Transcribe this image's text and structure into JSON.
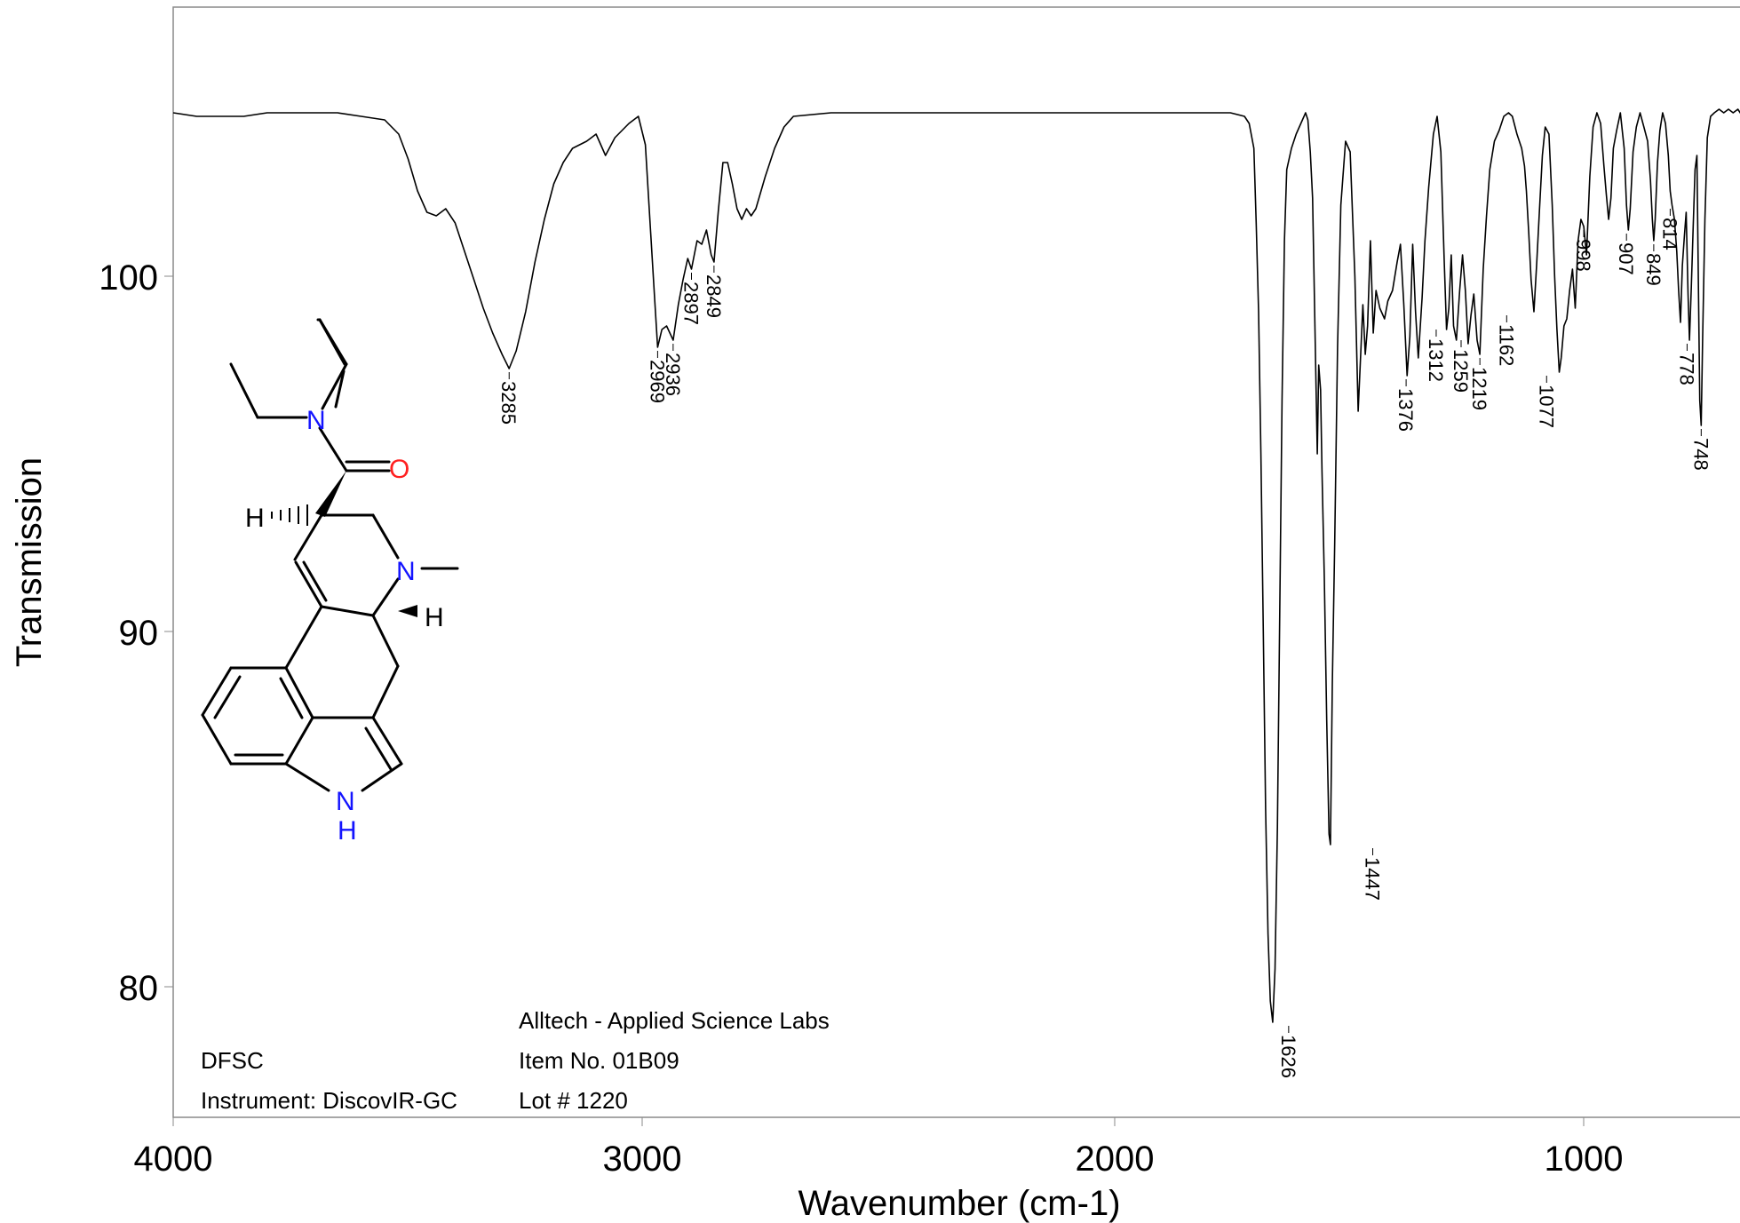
{
  "chart_data": {
    "type": "line",
    "xlabel": "Wavenumber (cm-1)",
    "ylabel": "Transmission",
    "x_ticks": [
      "4000",
      "3000",
      "2000",
      "1000"
    ],
    "y_ticks": [
      "100",
      "90",
      "80"
    ],
    "xlim": [
      4000,
      550
    ],
    "ylim": [
      76.5,
      107.7
    ],
    "x_reversed": true,
    "grid": false,
    "series": [
      {
        "points": [
          [
            4000,
            104.6
          ],
          [
            3950,
            104.5
          ],
          [
            3900,
            104.5
          ],
          [
            3850,
            104.5
          ],
          [
            3800,
            104.6
          ],
          [
            3750,
            104.6
          ],
          [
            3700,
            104.6
          ],
          [
            3650,
            104.6
          ],
          [
            3600,
            104.5
          ],
          [
            3550,
            104.4
          ],
          [
            3520,
            104.0
          ],
          [
            3500,
            103.3
          ],
          [
            3480,
            102.4
          ],
          [
            3460,
            101.8
          ],
          [
            3440,
            101.7
          ],
          [
            3420,
            101.9
          ],
          [
            3400,
            101.5
          ],
          [
            3380,
            100.7
          ],
          [
            3360,
            99.9
          ],
          [
            3340,
            99.1
          ],
          [
            3320,
            98.4
          ],
          [
            3300,
            97.8
          ],
          [
            3285,
            97.4
          ],
          [
            3270,
            97.9
          ],
          [
            3250,
            99.0
          ],
          [
            3230,
            100.4
          ],
          [
            3210,
            101.6
          ],
          [
            3190,
            102.6
          ],
          [
            3170,
            103.2
          ],
          [
            3150,
            103.6
          ],
          [
            3120,
            103.8
          ],
          [
            3100,
            104.0
          ],
          [
            3080,
            103.4
          ],
          [
            3060,
            103.9
          ],
          [
            3030,
            104.3
          ],
          [
            3010,
            104.5
          ],
          [
            2995,
            103.7
          ],
          [
            2985,
            101.5
          ],
          [
            2975,
            99.3
          ],
          [
            2969,
            98.0
          ],
          [
            2960,
            98.5
          ],
          [
            2950,
            98.6
          ],
          [
            2936,
            98.2
          ],
          [
            2925,
            99.2
          ],
          [
            2915,
            99.9
          ],
          [
            2905,
            100.5
          ],
          [
            2897,
            100.2
          ],
          [
            2885,
            101.0
          ],
          [
            2875,
            100.9
          ],
          [
            2865,
            101.3
          ],
          [
            2855,
            100.6
          ],
          [
            2849,
            100.4
          ],
          [
            2840,
            101.8
          ],
          [
            2830,
            103.2
          ],
          [
            2820,
            103.2
          ],
          [
            2810,
            102.6
          ],
          [
            2800,
            101.9
          ],
          [
            2790,
            101.6
          ],
          [
            2780,
            101.9
          ],
          [
            2770,
            101.7
          ],
          [
            2760,
            101.9
          ],
          [
            2740,
            102.8
          ],
          [
            2720,
            103.6
          ],
          [
            2700,
            104.2
          ],
          [
            2680,
            104.5
          ],
          [
            2600,
            104.6
          ],
          [
            2500,
            104.6
          ],
          [
            2400,
            104.6
          ],
          [
            2300,
            104.6
          ],
          [
            2200,
            104.6
          ],
          [
            2100,
            104.6
          ],
          [
            2000,
            104.6
          ],
          [
            1900,
            104.6
          ],
          [
            1800,
            104.6
          ],
          [
            1750,
            104.6
          ],
          [
            1720,
            104.5
          ],
          [
            1710,
            104.3
          ],
          [
            1700,
            103.6
          ],
          [
            1695,
            101.5
          ],
          [
            1690,
            99.0
          ],
          [
            1685,
            95.0
          ],
          [
            1680,
            90.0
          ],
          [
            1675,
            85.0
          ],
          [
            1670,
            81.5
          ],
          [
            1665,
            79.6
          ],
          [
            1660,
            79.0
          ],
          [
            1655,
            80.5
          ],
          [
            1650,
            84.5
          ],
          [
            1645,
            90.5
          ],
          [
            1640,
            96.5
          ],
          [
            1635,
            101.0
          ],
          [
            1630,
            103.0
          ],
          [
            1620,
            103.6
          ],
          [
            1610,
            104.0
          ],
          [
            1600,
            104.3
          ],
          [
            1590,
            104.6
          ],
          [
            1585,
            104.4
          ],
          [
            1580,
            103.5
          ],
          [
            1575,
            102.2
          ],
          [
            1570,
            98.5
          ],
          [
            1565,
            95.0
          ],
          [
            1562,
            97.5
          ],
          [
            1558,
            96.8
          ],
          [
            1555,
            94.5
          ],
          [
            1550,
            91.5
          ],
          [
            1545,
            87.5
          ],
          [
            1540,
            84.3
          ],
          [
            1537,
            84.0
          ],
          [
            1533,
            88.5
          ],
          [
            1528,
            92.5
          ],
          [
            1522,
            98.0
          ],
          [
            1515,
            102.0
          ],
          [
            1505,
            103.8
          ],
          [
            1495,
            103.5
          ],
          [
            1485,
            100.0
          ],
          [
            1478,
            96.2
          ],
          [
            1472,
            98.0
          ],
          [
            1468,
            99.2
          ],
          [
            1463,
            97.8
          ],
          [
            1458,
            98.6
          ],
          [
            1452,
            101.0
          ],
          [
            1446,
            98.4
          ],
          [
            1440,
            99.6
          ],
          [
            1432,
            99.1
          ],
          [
            1422,
            98.8
          ],
          [
            1415,
            99.3
          ],
          [
            1405,
            99.6
          ],
          [
            1395,
            100.4
          ],
          [
            1388,
            100.9
          ],
          [
            1381,
            99.2
          ],
          [
            1374,
            97.2
          ],
          [
            1368,
            98.3
          ],
          [
            1362,
            100.9
          ],
          [
            1356,
            99.0
          ],
          [
            1350,
            97.7
          ],
          [
            1342,
            99.4
          ],
          [
            1336,
            101.0
          ],
          [
            1328,
            102.5
          ],
          [
            1318,
            104.0
          ],
          [
            1310,
            104.5
          ],
          [
            1302,
            103.5
          ],
          [
            1295,
            100.5
          ],
          [
            1290,
            98.5
          ],
          [
            1285,
            99.1
          ],
          [
            1280,
            100.6
          ],
          [
            1275,
            98.6
          ],
          [
            1269,
            98.2
          ],
          [
            1262,
            99.6
          ],
          [
            1256,
            100.6
          ],
          [
            1250,
            99.6
          ],
          [
            1244,
            98.1
          ],
          [
            1238,
            98.9
          ],
          [
            1232,
            99.5
          ],
          [
            1225,
            98.2
          ],
          [
            1219,
            97.8
          ],
          [
            1212,
            100.2
          ],
          [
            1205,
            101.7
          ],
          [
            1198,
            103.0
          ],
          [
            1188,
            103.8
          ],
          [
            1178,
            104.1
          ],
          [
            1168,
            104.5
          ],
          [
            1158,
            104.6
          ],
          [
            1150,
            104.5
          ],
          [
            1140,
            104.0
          ],
          [
            1130,
            103.6
          ],
          [
            1124,
            103.1
          ],
          [
            1120,
            102.4
          ],
          [
            1115,
            101.2
          ],
          [
            1110,
            99.9
          ],
          [
            1104,
            99.0
          ],
          [
            1098,
            100.4
          ],
          [
            1092,
            101.9
          ],
          [
            1086,
            103.4
          ],
          [
            1080,
            104.2
          ],
          [
            1072,
            104.0
          ],
          [
            1065,
            102.0
          ],
          [
            1060,
            100.0
          ],
          [
            1055,
            98.5
          ],
          [
            1050,
            97.3
          ],
          [
            1046,
            97.7
          ],
          [
            1040,
            98.6
          ],
          [
            1034,
            98.8
          ],
          [
            1028,
            99.6
          ],
          [
            1022,
            100.2
          ],
          [
            1016,
            99.1
          ],
          [
            1010,
            101.0
          ],
          [
            1004,
            101.6
          ],
          [
            998,
            101.4
          ],
          [
            992,
            100.6
          ],
          [
            985,
            102.8
          ],
          [
            978,
            104.2
          ],
          [
            970,
            104.6
          ],
          [
            962,
            104.3
          ],
          [
            955,
            103.1
          ],
          [
            950,
            102.3
          ],
          [
            945,
            101.6
          ],
          [
            940,
            102.2
          ],
          [
            935,
            103.6
          ],
          [
            928,
            104.1
          ],
          [
            920,
            104.6
          ],
          [
            912,
            103.6
          ],
          [
            907,
            102.0
          ],
          [
            903,
            101.3
          ],
          [
            899,
            101.9
          ],
          [
            893,
            103.5
          ],
          [
            886,
            104.2
          ],
          [
            878,
            104.6
          ],
          [
            870,
            104.2
          ],
          [
            862,
            103.8
          ],
          [
            856,
            102.7
          ],
          [
            852,
            101.6
          ],
          [
            849,
            101.0
          ],
          [
            846,
            101.6
          ],
          [
            841,
            103.2
          ],
          [
            836,
            104.1
          ],
          [
            830,
            104.6
          ],
          [
            824,
            104.3
          ],
          [
            818,
            103.4
          ],
          [
            814,
            102.4
          ],
          [
            810,
            102.0
          ],
          [
            805,
            101.6
          ],
          [
            800,
            100.7
          ],
          [
            796,
            99.6
          ],
          [
            792,
            98.7
          ],
          [
            788,
            100.3
          ],
          [
            784,
            101.1
          ],
          [
            780,
            101.8
          ],
          [
            776,
            99.5
          ],
          [
            773,
            98.2
          ],
          [
            769,
            99.7
          ],
          [
            765,
            101.4
          ],
          [
            761,
            103.0
          ],
          [
            757,
            103.4
          ],
          [
            754,
            99.9
          ],
          [
            751,
            96.5
          ],
          [
            748,
            95.8
          ],
          [
            745,
            98.2
          ],
          [
            740,
            101.6
          ],
          [
            735,
            103.9
          ],
          [
            728,
            104.5
          ],
          [
            720,
            104.6
          ],
          [
            710,
            104.7
          ],
          [
            700,
            104.6
          ],
          [
            690,
            104.7
          ],
          [
            680,
            104.6
          ],
          [
            670,
            104.7
          ],
          [
            660,
            104.5
          ],
          [
            652,
            104.6
          ],
          [
            648,
            104.2
          ]
        ]
      }
    ],
    "peak_labels": [
      "3285",
      "2969",
      "2936",
      "2897",
      "2849",
      "1626",
      "1447",
      "1376",
      "1312",
      "1259",
      "1219",
      "1162",
      "1077",
      "998",
      "907",
      "849",
      "814",
      "778",
      "748"
    ],
    "peak_label_anchors": [
      [
        3285,
        97.4
      ],
      [
        2969,
        98.0
      ],
      [
        2936,
        98.2
      ],
      [
        2897,
        100.2
      ],
      [
        2849,
        100.4
      ],
      [
        1626,
        79.0
      ],
      [
        1447,
        84.0
      ],
      [
        1376,
        97.2
      ],
      [
        1312,
        98.6
      ],
      [
        1259,
        98.3
      ],
      [
        1219,
        97.8
      ],
      [
        1162,
        99.0
      ],
      [
        1077,
        97.3
      ],
      [
        998,
        101.4
      ],
      [
        907,
        101.3
      ],
      [
        849,
        101.0
      ],
      [
        814,
        102.0
      ],
      [
        778,
        98.2
      ],
      [
        748,
        95.8
      ]
    ]
  },
  "info_left": {
    "line1": "DFSC",
    "line2": "Instrument: DiscovIR-GC"
  },
  "info_right": {
    "line1": "Alltech - Applied Science Labs",
    "line2": "Item No. 01B09",
    "line3": "Lot # 1220"
  },
  "molecule": {
    "atoms": {
      "amide_n": "N",
      "carbonyl_o": "O",
      "ring_n": "N",
      "h_stereo_left": "H",
      "h_stereo_right": "H",
      "indole_n": "N",
      "indole_h": "H"
    },
    "colors": {
      "nitrogen": "#1414ff",
      "oxygen": "#ff2020",
      "bond": "#000000"
    }
  }
}
